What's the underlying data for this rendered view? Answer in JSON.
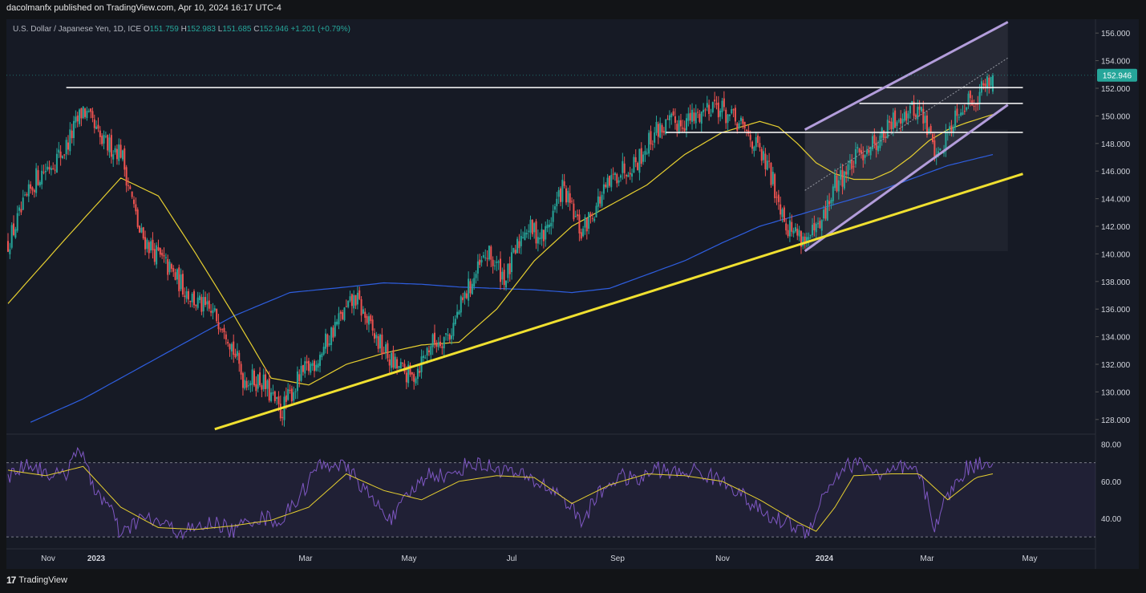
{
  "header": {
    "publish_line": "dacolmanfx published on TradingView.com, Apr 10, 2024 16:17 UTC-4"
  },
  "legend": {
    "symbol": "U.S. Dollar / Japanese Yen, 1D, ICE",
    "o_label": "O",
    "o_value": "151.759",
    "h_label": "H",
    "h_value": "152.983",
    "l_label": "L",
    "l_value": "151.685",
    "c_label": "C",
    "c_value": "152.946",
    "change": "+1.201 (+0.79%)"
  },
  "footer": {
    "brand": "TradingView",
    "mark": "17"
  },
  "colors": {
    "up": "#26a69a",
    "down": "#ef5350",
    "background": "#161a25",
    "ma_fast": "#e6cf30",
    "ma_slow": "#2e5ee0",
    "rsi": "#7e57c2",
    "trendline": "#f0e030",
    "channel": "#b39ddb",
    "price_badge": "#26a69a"
  },
  "chart_data": [
    {
      "type": "candlestick",
      "title": "U.S. Dollar / Japanese Yen, 1D, ICE",
      "ylim": [
        127,
        157
      ],
      "y_ticks": [
        "156.000",
        "154.000",
        "152.000",
        "150.000",
        "148.000",
        "146.000",
        "144.000",
        "142.000",
        "140.000",
        "138.000",
        "136.000",
        "134.000",
        "132.000",
        "130.000",
        "128.000"
      ],
      "x_labels": [
        "Nov",
        "2023",
        "Mar",
        "May",
        "Jul",
        "Sep",
        "Nov",
        "2024",
        "Mar",
        "May"
      ],
      "last_price": "152.946",
      "price_anchors": [
        [
          0,
          140.8
        ],
        [
          15,
          145.5
        ],
        [
          30,
          147.5
        ],
        [
          40,
          150.5
        ],
        [
          50,
          148
        ],
        [
          60,
          147.5
        ],
        [
          70,
          141.5
        ],
        [
          85,
          139
        ],
        [
          100,
          136.5
        ],
        [
          115,
          135
        ],
        [
          125,
          131
        ],
        [
          135,
          130.8
        ],
        [
          145,
          128.5
        ],
        [
          155,
          131
        ],
        [
          165,
          132.5
        ],
        [
          175,
          135
        ],
        [
          185,
          136.8
        ],
        [
          195,
          134
        ],
        [
          205,
          132
        ],
        [
          215,
          131
        ],
        [
          225,
          133.5
        ],
        [
          235,
          134.2
        ],
        [
          245,
          137.5
        ],
        [
          255,
          140
        ],
        [
          265,
          138.2
        ],
        [
          275,
          142
        ],
        [
          285,
          141.2
        ],
        [
          295,
          144.8
        ],
        [
          305,
          141.5
        ],
        [
          315,
          144
        ],
        [
          325,
          146
        ],
        [
          335,
          146.8
        ],
        [
          345,
          149
        ],
        [
          355,
          149.5
        ],
        [
          365,
          149.8
        ],
        [
          375,
          151
        ],
        [
          385,
          149.8
        ],
        [
          395,
          148.5
        ],
        [
          405,
          146
        ],
        [
          415,
          142
        ],
        [
          425,
          141
        ],
        [
          432,
          141.8
        ],
        [
          440,
          145
        ],
        [
          455,
          147.5
        ],
        [
          465,
          148.5
        ],
        [
          475,
          150.2
        ],
        [
          485,
          150.5
        ],
        [
          495,
          147
        ],
        [
          505,
          150.5
        ],
        [
          515,
          151.4
        ],
        [
          524,
          152.946
        ]
      ],
      "ma_fast": [
        [
          0,
          136.4
        ],
        [
          30,
          141
        ],
        [
          60,
          145.5
        ],
        [
          80,
          144.2
        ],
        [
          100,
          140
        ],
        [
          120,
          135.6
        ],
        [
          140,
          131
        ],
        [
          160,
          130.5
        ],
        [
          180,
          132
        ],
        [
          200,
          132.8
        ],
        [
          220,
          133.4
        ],
        [
          240,
          133.6
        ],
        [
          260,
          136
        ],
        [
          280,
          139.5
        ],
        [
          300,
          142
        ],
        [
          320,
          143.5
        ],
        [
          340,
          145
        ],
        [
          360,
          147.2
        ],
        [
          380,
          148.8
        ],
        [
          400,
          149.6
        ],
        [
          410,
          149.2
        ],
        [
          420,
          148
        ],
        [
          430,
          146.6
        ],
        [
          440,
          145.8
        ],
        [
          450,
          145.4
        ],
        [
          460,
          145.4
        ],
        [
          470,
          146
        ],
        [
          480,
          147
        ],
        [
          490,
          148.2
        ],
        [
          500,
          149
        ],
        [
          510,
          149.5
        ],
        [
          524,
          150.1
        ]
      ],
      "ma_slow": [
        [
          12,
          127.8
        ],
        [
          40,
          129.5
        ],
        [
          80,
          132.5
        ],
        [
          120,
          135.5
        ],
        [
          150,
          137.2
        ],
        [
          180,
          137.6
        ],
        [
          200,
          137.9
        ],
        [
          220,
          137.8
        ],
        [
          240,
          137.6
        ],
        [
          260,
          137.5
        ],
        [
          280,
          137.4
        ],
        [
          300,
          137.2
        ],
        [
          320,
          137.5
        ],
        [
          340,
          138.5
        ],
        [
          360,
          139.5
        ],
        [
          380,
          140.8
        ],
        [
          400,
          142
        ],
        [
          420,
          142.8
        ],
        [
          440,
          143.6
        ],
        [
          460,
          144.4
        ],
        [
          480,
          145.4
        ],
        [
          500,
          146.4
        ],
        [
          524,
          147.2
        ]
      ],
      "support_line": [
        [
          110,
          127.3
        ],
        [
          540,
          145.8
        ]
      ],
      "resistance_lines": [
        {
          "x": [
            31,
            540
          ],
          "y": 152.05
        },
        {
          "x": [
            453,
            540
          ],
          "y": 150.9
        },
        {
          "x": [
            350,
            540
          ],
          "y": 148.8
        }
      ],
      "channel": {
        "upper": [
          [
            424,
            149
          ],
          [
            532,
            156.8
          ]
        ],
        "lower": [
          [
            424,
            140.2
          ],
          [
            532,
            150.8
          ]
        ],
        "median": [
          [
            424,
            144.6
          ],
          [
            532,
            154.2
          ]
        ]
      }
    },
    {
      "type": "line",
      "title": "RSI",
      "ylim": [
        27,
        85
      ],
      "y_ticks": [
        "80.00",
        "60.00",
        "40.00"
      ],
      "band": [
        30,
        70
      ],
      "rsi_anchors": [
        [
          0,
          62
        ],
        [
          10,
          70
        ],
        [
          20,
          65
        ],
        [
          30,
          62
        ],
        [
          37,
          80
        ],
        [
          45,
          58
        ],
        [
          55,
          44
        ],
        [
          60,
          30
        ],
        [
          70,
          40
        ],
        [
          80,
          38
        ],
        [
          90,
          33
        ],
        [
          100,
          34
        ],
        [
          110,
          38
        ],
        [
          120,
          33
        ],
        [
          130,
          40
        ],
        [
          140,
          40
        ],
        [
          145,
          38
        ],
        [
          155,
          52
        ],
        [
          165,
          68
        ],
        [
          175,
          70
        ],
        [
          185,
          62
        ],
        [
          195,
          48
        ],
        [
          205,
          40
        ],
        [
          215,
          55
        ],
        [
          225,
          65
        ],
        [
          235,
          62
        ],
        [
          245,
          70
        ],
        [
          255,
          68
        ],
        [
          265,
          66
        ],
        [
          275,
          62
        ],
        [
          285,
          58
        ],
        [
          295,
          52
        ],
        [
          305,
          38
        ],
        [
          315,
          54
        ],
        [
          325,
          63
        ],
        [
          335,
          60
        ],
        [
          345,
          67
        ],
        [
          355,
          64
        ],
        [
          365,
          66
        ],
        [
          375,
          62
        ],
        [
          385,
          58
        ],
        [
          395,
          48
        ],
        [
          405,
          40
        ],
        [
          415,
          38
        ],
        [
          425,
          32
        ],
        [
          435,
          55
        ],
        [
          445,
          68
        ],
        [
          455,
          70
        ],
        [
          465,
          62
        ],
        [
          475,
          67
        ],
        [
          485,
          64
        ],
        [
          493,
          36
        ],
        [
          500,
          52
        ],
        [
          510,
          67
        ],
        [
          524,
          72
        ]
      ],
      "rsi_ma": [
        [
          0,
          66
        ],
        [
          20,
          63
        ],
        [
          40,
          68
        ],
        [
          60,
          46
        ],
        [
          80,
          35
        ],
        [
          100,
          34
        ],
        [
          120,
          36
        ],
        [
          140,
          39
        ],
        [
          160,
          46
        ],
        [
          180,
          64
        ],
        [
          200,
          55
        ],
        [
          220,
          50
        ],
        [
          240,
          60
        ],
        [
          260,
          63
        ],
        [
          280,
          62
        ],
        [
          300,
          48
        ],
        [
          320,
          58
        ],
        [
          340,
          64
        ],
        [
          360,
          63
        ],
        [
          380,
          60
        ],
        [
          400,
          50
        ],
        [
          420,
          38
        ],
        [
          430,
          33
        ],
        [
          440,
          46
        ],
        [
          450,
          63
        ],
        [
          470,
          64
        ],
        [
          485,
          64
        ],
        [
          500,
          50
        ],
        [
          515,
          62
        ],
        [
          524,
          64
        ]
      ]
    }
  ]
}
